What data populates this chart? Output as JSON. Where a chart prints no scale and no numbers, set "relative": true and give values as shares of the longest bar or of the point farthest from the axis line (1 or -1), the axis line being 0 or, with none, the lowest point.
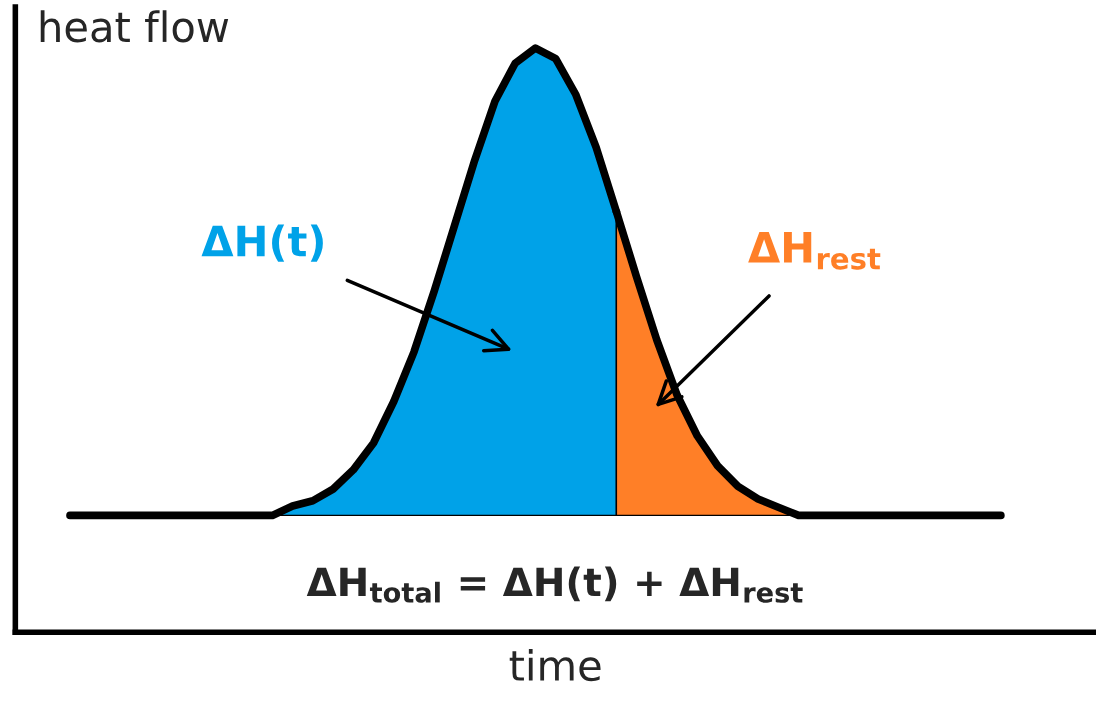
{
  "chart_data": {
    "type": "area",
    "relative": true,
    "xlabel": "time",
    "ylabel": "heat flow",
    "categories": [
      null,
      null,
      null,
      null,
      null,
      null,
      null,
      null,
      null,
      null,
      null,
      null,
      null,
      null,
      null,
      null,
      null,
      null,
      null,
      null,
      null,
      null,
      null,
      null,
      null,
      null,
      null,
      null,
      null,
      null,
      null,
      null,
      null,
      null,
      null,
      null,
      null,
      null,
      null,
      null,
      null,
      null,
      null,
      null,
      null,
      null,
      null
    ],
    "series": [
      {
        "name": "ΔH(t)",
        "color": "#00a2e8",
        "values": [
          0.2,
          0.2,
          0.2,
          0.2,
          0.2,
          0.2,
          0.2,
          0.2,
          0.2,
          0.2,
          0.2,
          0.216,
          0.225,
          0.245,
          0.278,
          0.324,
          0.395,
          0.48,
          0.584,
          0.696,
          0.808,
          0.909,
          0.974,
          1.0,
          0.982,
          0.92,
          0.83,
          0.72,
          null,
          null,
          null,
          null,
          null,
          null,
          null,
          null,
          null,
          null,
          null,
          null,
          null,
          null,
          null,
          null,
          null,
          null,
          null
        ]
      },
      {
        "name": "ΔH$_{rest}$",
        "color": "#ff7f27",
        "values": [
          null,
          null,
          null,
          null,
          null,
          null,
          null,
          null,
          null,
          null,
          null,
          null,
          null,
          null,
          null,
          null,
          null,
          null,
          null,
          null,
          null,
          null,
          null,
          null,
          null,
          null,
          null,
          0.72,
          0.608,
          0.5,
          0.406,
          0.336,
          0.285,
          0.25,
          0.228,
          0.214,
          0.2,
          0.2,
          0.2,
          0.2,
          0.2,
          0.2,
          0.2,
          0.2,
          0.2,
          0.2,
          0.2
        ]
      }
    ],
    "annotations": [
      "ΔH$_{total}$ = ΔH(t) + ΔH$_{rest}$"
    ]
  }
}
